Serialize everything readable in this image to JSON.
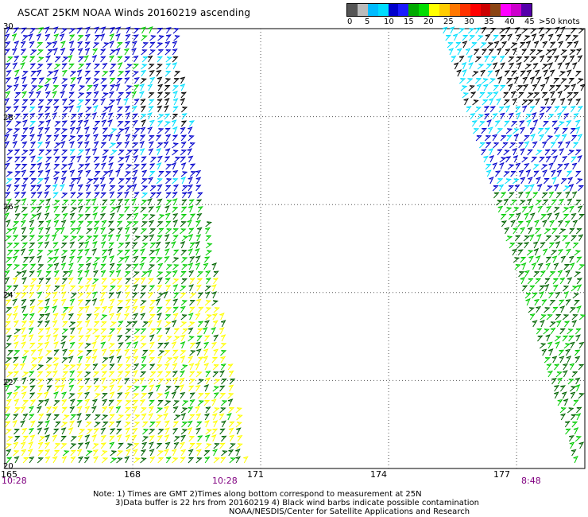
{
  "title": "ASCAT 25KM NOAA Winds 20160219 ascending",
  "legend": {
    "labels": [
      "0",
      "5",
      "10",
      "15",
      "20",
      "25",
      "30",
      "35",
      "40",
      "45",
      ">50 knots"
    ],
    "colors": [
      "#555555",
      "#bbbbbb",
      "#00bbff",
      "#00ddff",
      "#0000cc",
      "#1a1aff",
      "#00aa00",
      "#00dd00",
      "#ffff00",
      "#ffcc00",
      "#ff7700",
      "#ff3300",
      "#ff0000",
      "#cc0000",
      "#8b4513",
      "#ff00ff",
      "#cc00cc",
      "#5500aa"
    ]
  },
  "axes": {
    "lon_ticks": [
      "165",
      "168",
      "171",
      "174",
      "177"
    ],
    "lat_ticks": [
      "30",
      "28",
      "26",
      "24",
      "22",
      "20"
    ]
  },
  "times": {
    "left": "10:28",
    "middle": "10:28",
    "right": "8:48"
  },
  "notes": {
    "line1": "Note: 1) Times are GMT 2)Times along bottom correspond to measurement at 25N",
    "line2": "3)Data buffer is 22 hrs from 20160219 4) Black wind barbs indicate possible contamination",
    "line3": "NOAA/NESDIS/Center for Satellite Applications and Research"
  },
  "map": {
    "lon_range": [
      165,
      178.6
    ],
    "lat_range": [
      20,
      30
    ],
    "grid": true,
    "wind_colors": {
      "10-15kt": "#00e0ff",
      "15-20kt": "#0000cc",
      "20-25kt": "#00cc00",
      "25-30kt": "#006400",
      "30-35kt": "#ffff00",
      "contaminated": "#000000"
    }
  }
}
